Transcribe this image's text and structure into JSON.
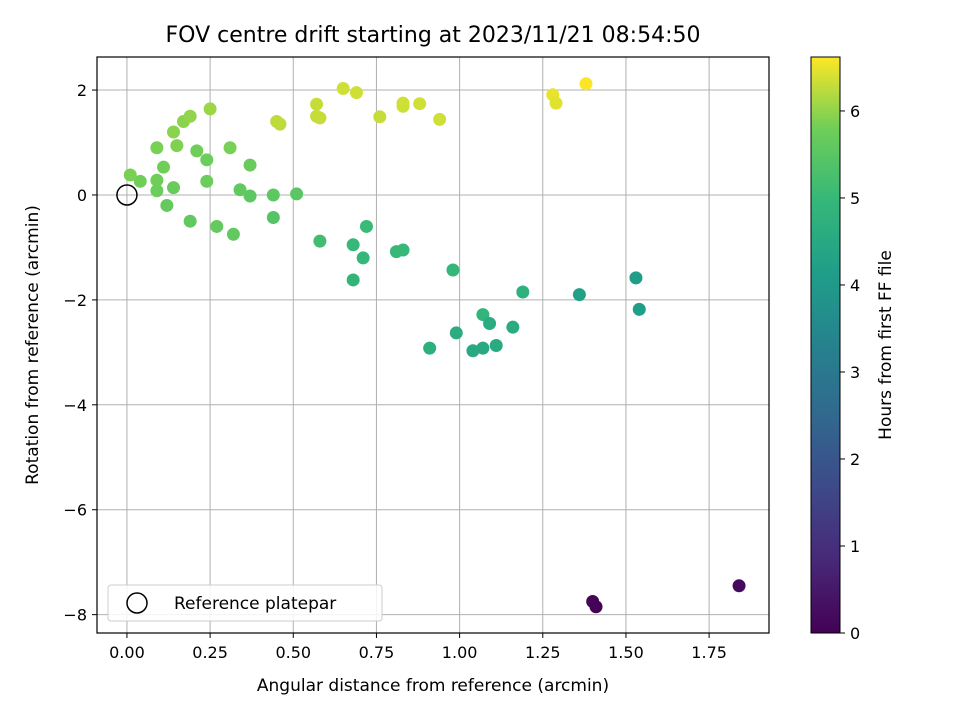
{
  "chart_data": {
    "type": "scatter",
    "title": "FOV centre drift starting at 2023/11/21 08:54:50",
    "xlabel": "Angular distance from reference (arcmin)",
    "ylabel": "Rotation from reference (arcmin)",
    "xlim": [
      -0.09,
      1.93
    ],
    "ylim": [
      -8.35,
      2.63
    ],
    "xticks": [
      0.0,
      0.25,
      0.5,
      0.75,
      1.0,
      1.25,
      1.5,
      1.75
    ],
    "xtick_labels": [
      "0.00",
      "0.25",
      "0.50",
      "0.75",
      "1.00",
      "1.25",
      "1.50",
      "1.75"
    ],
    "yticks": [
      -8,
      -6,
      -4,
      -2,
      0,
      2
    ],
    "ytick_labels": [
      "−8",
      "−6",
      "−4",
      "−2",
      "0",
      "2"
    ],
    "grid": true,
    "legend_position": "lower-left",
    "colorbar": {
      "label": "Hours from first FF file",
      "colormap": "viridis",
      "range": [
        0,
        6.62
      ],
      "ticks": [
        0,
        1,
        2,
        3,
        4,
        5,
        6
      ],
      "tick_labels": [
        "0",
        "1",
        "2",
        "3",
        "4",
        "5",
        "6"
      ]
    },
    "reference": {
      "label": "Reference platepar",
      "x": 0.0,
      "y": 0.0
    },
    "points": [
      {
        "x": 1.84,
        "y": -7.45,
        "c": 0.2
      },
      {
        "x": 1.4,
        "y": -7.75,
        "c": 0.1
      },
      {
        "x": 1.41,
        "y": -7.85,
        "c": 0.05
      },
      {
        "x": 1.53,
        "y": -1.58,
        "c": 4.1
      },
      {
        "x": 1.54,
        "y": -2.18,
        "c": 4.15
      },
      {
        "x": 1.36,
        "y": -1.9,
        "c": 4.25
      },
      {
        "x": 1.19,
        "y": -1.85,
        "c": 4.75
      },
      {
        "x": 1.16,
        "y": -2.52,
        "c": 4.6
      },
      {
        "x": 1.11,
        "y": -2.87,
        "c": 4.55
      },
      {
        "x": 1.07,
        "y": -2.92,
        "c": 4.5
      },
      {
        "x": 1.04,
        "y": -2.97,
        "c": 4.5
      },
      {
        "x": 0.99,
        "y": -2.63,
        "c": 4.65
      },
      {
        "x": 1.07,
        "y": -2.28,
        "c": 4.85
      },
      {
        "x": 1.09,
        "y": -2.45,
        "c": 4.6
      },
      {
        "x": 0.91,
        "y": -2.92,
        "c": 4.7
      },
      {
        "x": 0.98,
        "y": -1.43,
        "c": 4.95
      },
      {
        "x": 0.83,
        "y": -1.05,
        "c": 5.0
      },
      {
        "x": 0.81,
        "y": -1.08,
        "c": 5.0
      },
      {
        "x": 0.72,
        "y": -0.6,
        "c": 5.05
      },
      {
        "x": 0.71,
        "y": -1.2,
        "c": 4.95
      },
      {
        "x": 0.68,
        "y": -0.95,
        "c": 5.0
      },
      {
        "x": 0.68,
        "y": -1.62,
        "c": 4.9
      },
      {
        "x": 0.58,
        "y": -0.88,
        "c": 5.15
      },
      {
        "x": 0.51,
        "y": 0.02,
        "c": 5.5
      },
      {
        "x": 0.44,
        "y": 0.0,
        "c": 5.55
      },
      {
        "x": 0.44,
        "y": -0.43,
        "c": 5.45
      },
      {
        "x": 0.37,
        "y": -0.02,
        "c": 5.55
      },
      {
        "x": 0.34,
        "y": 0.1,
        "c": 5.6
      },
      {
        "x": 0.37,
        "y": 0.57,
        "c": 5.7
      },
      {
        "x": 0.32,
        "y": -0.75,
        "c": 5.6
      },
      {
        "x": 0.27,
        "y": -0.6,
        "c": 5.65
      },
      {
        "x": 0.24,
        "y": 0.26,
        "c": 5.75
      },
      {
        "x": 0.24,
        "y": 0.67,
        "c": 5.75
      },
      {
        "x": 0.31,
        "y": 0.9,
        "c": 5.85
      },
      {
        "x": 0.21,
        "y": 0.84,
        "c": 5.8
      },
      {
        "x": 0.19,
        "y": -0.5,
        "c": 5.6
      },
      {
        "x": 0.15,
        "y": 0.94,
        "c": 5.9
      },
      {
        "x": 0.14,
        "y": 0.14,
        "c": 5.7
      },
      {
        "x": 0.12,
        "y": -0.2,
        "c": 5.65
      },
      {
        "x": 0.11,
        "y": 0.53,
        "c": 5.8
      },
      {
        "x": 0.09,
        "y": 0.28,
        "c": 5.8
      },
      {
        "x": 0.09,
        "y": 0.08,
        "c": 5.75
      },
      {
        "x": 0.09,
        "y": 0.9,
        "c": 5.85
      },
      {
        "x": 0.04,
        "y": 0.26,
        "c": 5.8
      },
      {
        "x": 0.01,
        "y": 0.38,
        "c": 5.85
      },
      {
        "x": 0.14,
        "y": 1.2,
        "c": 5.95
      },
      {
        "x": 0.17,
        "y": 1.4,
        "c": 5.95
      },
      {
        "x": 0.19,
        "y": 1.5,
        "c": 6.0
      },
      {
        "x": 0.25,
        "y": 1.64,
        "c": 6.05
      },
      {
        "x": 0.45,
        "y": 1.4,
        "c": 6.25
      },
      {
        "x": 0.46,
        "y": 1.35,
        "c": 6.25
      },
      {
        "x": 0.57,
        "y": 1.73,
        "c": 6.3
      },
      {
        "x": 0.57,
        "y": 1.5,
        "c": 6.3
      },
      {
        "x": 0.58,
        "y": 1.47,
        "c": 6.3
      },
      {
        "x": 0.65,
        "y": 2.03,
        "c": 6.35
      },
      {
        "x": 0.69,
        "y": 1.95,
        "c": 6.35
      },
      {
        "x": 0.76,
        "y": 1.49,
        "c": 6.3
      },
      {
        "x": 0.83,
        "y": 1.75,
        "c": 6.35
      },
      {
        "x": 0.83,
        "y": 1.69,
        "c": 6.35
      },
      {
        "x": 0.88,
        "y": 1.74,
        "c": 6.35
      },
      {
        "x": 0.94,
        "y": 1.44,
        "c": 6.35
      },
      {
        "x": 1.28,
        "y": 1.91,
        "c": 6.5
      },
      {
        "x": 1.29,
        "y": 1.75,
        "c": 6.45
      },
      {
        "x": 1.38,
        "y": 2.12,
        "c": 6.6
      }
    ]
  }
}
